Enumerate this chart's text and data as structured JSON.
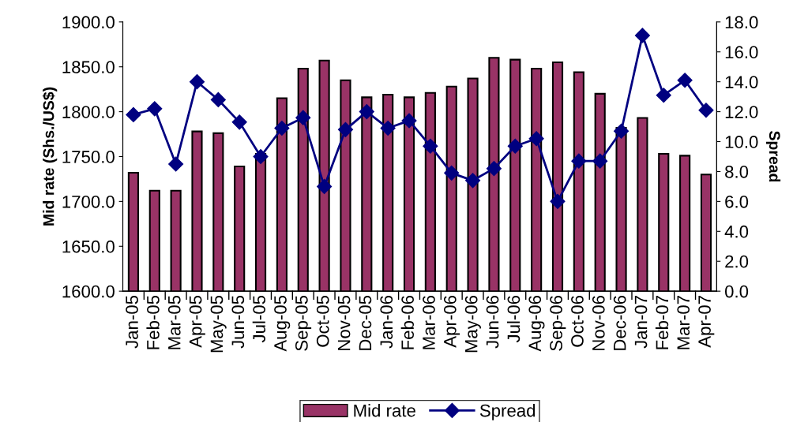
{
  "chart_data": {
    "type": "bar",
    "ylabel": "Mid rate (Shs./US$)",
    "y2label": "Spread",
    "categories": [
      "Jan-05",
      "Feb-05",
      "Mar-05",
      "Apr-05",
      "May-05",
      "Jun-05",
      "Jul-05",
      "Aug-05",
      "Sep-05",
      "Oct-05",
      "Nov-05",
      "Dec-05",
      "Jan-06",
      "Feb-06",
      "Mar-06",
      "Apr-06",
      "May-06",
      "Jun-06",
      "Jul-06",
      "Aug-06",
      "Sep-06",
      "Oct-06",
      "Nov-06",
      "Dec-06",
      "Jan-07",
      "Feb-07",
      "Mar-07",
      "Apr-07"
    ],
    "series": [
      {
        "name": "Mid rate",
        "color": "#993366",
        "values": [
          1732,
          1712,
          1712,
          1778,
          1776,
          1739,
          1753,
          1815,
          1848,
          1857,
          1835,
          1816,
          1819,
          1816,
          1821,
          1828,
          1837,
          1860,
          1858,
          1848,
          1855,
          1844,
          1820,
          1782,
          1793,
          1753,
          1751,
          1730
        ]
      },
      {
        "name": "Spread",
        "type": "line",
        "axis": "y2",
        "color": "#000080",
        "marker": "diamond",
        "values": [
          11.8,
          12.2,
          8.5,
          14.0,
          12.8,
          11.3,
          9.0,
          10.9,
          11.6,
          7.0,
          10.8,
          12.0,
          10.9,
          11.4,
          9.7,
          7.9,
          7.4,
          8.2,
          9.7,
          10.2,
          6.0,
          8.7,
          8.7,
          10.7,
          17.1,
          13.1,
          14.1,
          12.1
        ]
      }
    ],
    "ylim": [
      1600,
      1900
    ],
    "yticks": [
      {
        "value": 1600,
        "label": "1600.0"
      },
      {
        "value": 1650,
        "label": "1650.0"
      },
      {
        "value": 1700,
        "label": "1700.0"
      },
      {
        "value": 1750,
        "label": "1750.0"
      },
      {
        "value": 1800,
        "label": "1800.0"
      },
      {
        "value": 1850,
        "label": "1850.0"
      },
      {
        "value": 1900,
        "label": "1900.0"
      }
    ],
    "y2lim": [
      0,
      18
    ],
    "y2ticks": [
      {
        "value": 0,
        "label": "0.0"
      },
      {
        "value": 2,
        "label": "2.0"
      },
      {
        "value": 4,
        "label": "4.0"
      },
      {
        "value": 6,
        "label": "6.0"
      },
      {
        "value": 8,
        "label": "8.0"
      },
      {
        "value": 10,
        "label": "10.0"
      },
      {
        "value": 12,
        "label": "12.0"
      },
      {
        "value": 14,
        "label": "14.0"
      },
      {
        "value": 16,
        "label": "16.0"
      },
      {
        "value": 18,
        "label": "18.0"
      }
    ],
    "grid": false,
    "legend": "bottom"
  }
}
